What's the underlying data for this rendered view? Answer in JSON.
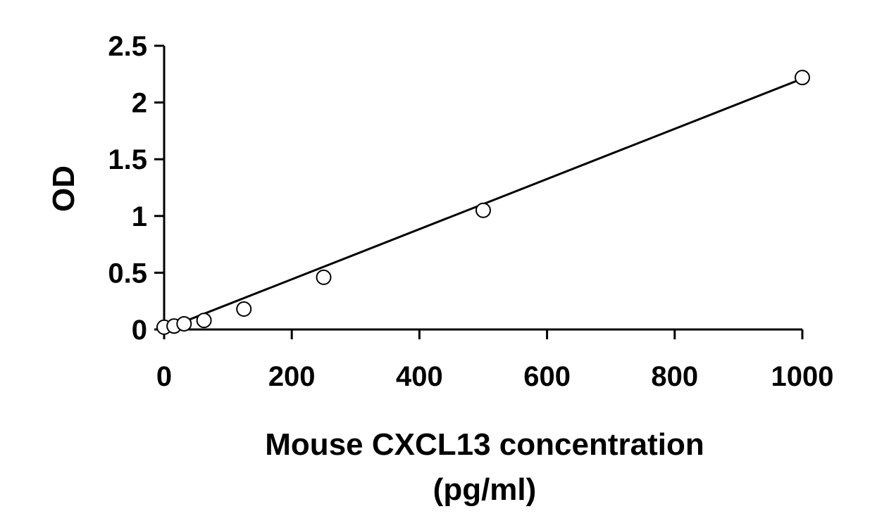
{
  "chart_data": {
    "type": "scatter",
    "xlabel_line1": "Mouse CXCL13 concentration",
    "xlabel_line2": "(pg/ml)",
    "ylabel": "OD",
    "xlim": [
      0,
      1000
    ],
    "ylim": [
      0,
      2.5
    ],
    "x_ticks": [
      0,
      200,
      400,
      600,
      800,
      1000
    ],
    "x_tick_labels": [
      "0",
      "200",
      "400",
      "600",
      "800",
      "1000"
    ],
    "y_ticks": [
      0,
      0.5,
      1,
      1.5,
      2,
      2.5
    ],
    "y_tick_labels": [
      "0",
      "0.5",
      "1",
      "1.5",
      "2",
      "2.5"
    ],
    "grid": false,
    "legend": "none",
    "marker": "open-circle",
    "series": [
      {
        "x": [
          0,
          15.6,
          31.25,
          62.5,
          125,
          250,
          500,
          1000
        ],
        "y": [
          0.02,
          0.03,
          0.05,
          0.08,
          0.18,
          0.46,
          1.05,
          2.22
        ]
      }
    ],
    "trendline": {
      "type": "linear",
      "x": [
        0,
        1000
      ],
      "y": [
        0.0,
        2.21
      ]
    }
  }
}
